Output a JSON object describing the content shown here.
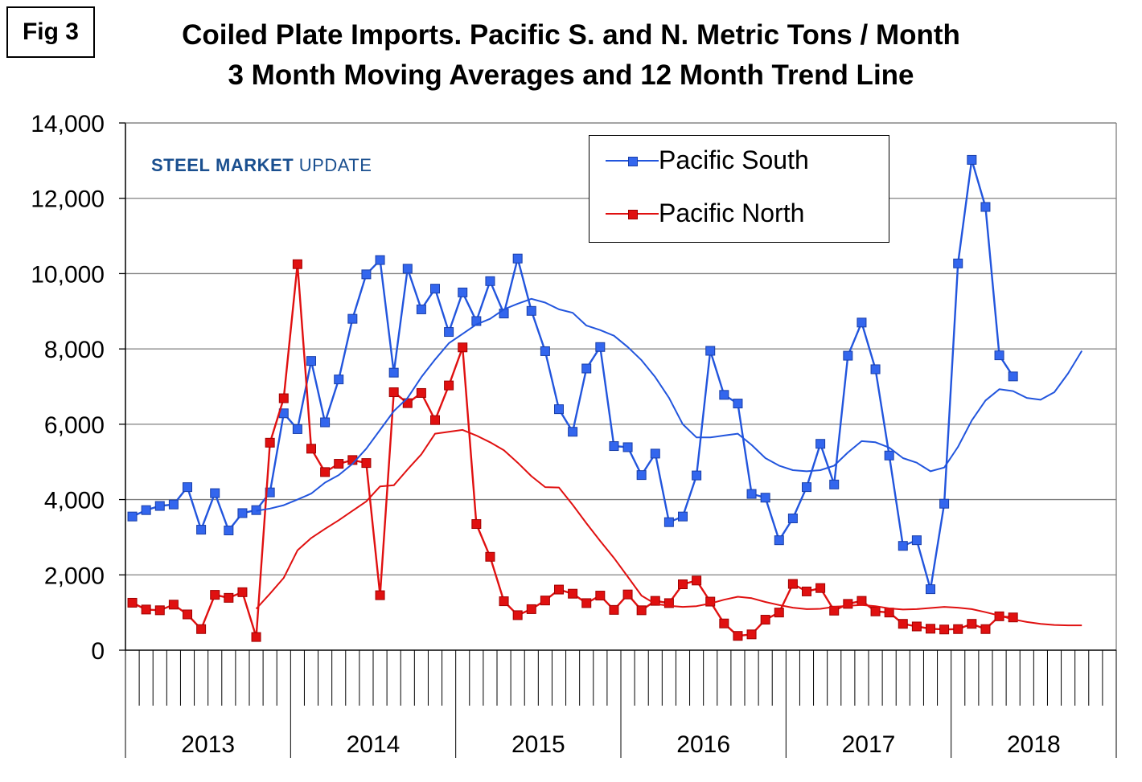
{
  "figure_label": "Fig 3",
  "title_line1": "Coiled Plate Imports. Pacific S. and N. Metric Tons / Month",
  "title_line2": "3 Month Moving Averages and 12 Month Trend Line",
  "logo": {
    "steel": "STEEL",
    "market": "MARKET",
    "update": "UPDATE"
  },
  "colors": {
    "south": "#2255dd",
    "south_marker": "#3366ee",
    "north": "#e01010",
    "grid": "#808080",
    "logo_swoosh": "#e85a1a"
  },
  "chart_data": {
    "type": "line",
    "title": "Coiled Plate Imports. Pacific S. and N. Metric Tons / Month — 3 Month Moving Averages and 12 Month Trend Line",
    "ylim": [
      0,
      14000
    ],
    "yticks": [
      "0",
      "2,000",
      "4,000",
      "6,000",
      "8,000",
      "10,000",
      "12,000",
      "14,000"
    ],
    "ytick_values": [
      0,
      2000,
      4000,
      6000,
      8000,
      10000,
      12000,
      14000
    ],
    "x_months": 72,
    "year_labels": [
      "2013",
      "2014",
      "2015",
      "2016",
      "2017",
      "2018"
    ],
    "grid": true,
    "legend_position": "top-right",
    "series": [
      {
        "name": "Pacific South",
        "style": "line-with-markers",
        "values": [
          3550,
          3720,
          3830,
          3870,
          4330,
          3200,
          4170,
          3180,
          3640,
          3720,
          4190,
          6290,
          5870,
          7680,
          6050,
          7190,
          8800,
          9980,
          10360,
          7370,
          10130,
          9050,
          9600,
          8450,
          9500,
          8740,
          9800,
          8940,
          10400,
          9010,
          7940,
          6400,
          5800,
          7480,
          8050,
          5420,
          5390,
          4650,
          5220,
          3400,
          3550,
          4640,
          7950,
          6780,
          6550,
          4150,
          4050,
          2920,
          3500,
          4330,
          5480,
          4400,
          7820,
          8700,
          7460,
          5170,
          2770,
          2920,
          1620,
          3890,
          10270,
          13020,
          11770,
          7830,
          7270
        ]
      },
      {
        "name": "Pacific North",
        "style": "line-with-markers",
        "values": [
          1260,
          1080,
          1060,
          1210,
          950,
          560,
          1470,
          1390,
          1540,
          350,
          5510,
          6690,
          10250,
          5350,
          4730,
          4950,
          5050,
          4970,
          1460,
          6850,
          6560,
          6830,
          6110,
          7030,
          8040,
          3350,
          2480,
          1300,
          930,
          1090,
          1320,
          1610,
          1500,
          1250,
          1450,
          1070,
          1480,
          1060,
          1310,
          1250,
          1750,
          1850,
          1290,
          710,
          380,
          420,
          810,
          1000,
          1760,
          1560,
          1650,
          1050,
          1230,
          1310,
          1030,
          1000,
          700,
          630,
          570,
          550,
          560,
          700,
          560,
          900,
          870
        ]
      },
      {
        "name": "Pacific South 12 Month Trend",
        "style": "line",
        "x_start": 9,
        "values": [
          3700,
          3760,
          3850,
          4000,
          4160,
          4450,
          4650,
          4950,
          5350,
          5850,
          6350,
          6700,
          7250,
          7720,
          8150,
          8400,
          8650,
          8800,
          9050,
          9200,
          9330,
          9230,
          9050,
          8960,
          8620,
          8500,
          8350,
          8050,
          7700,
          7250,
          6700,
          6000,
          5650,
          5650,
          5700,
          5750,
          5450,
          5100,
          4900,
          4780,
          4750,
          4780,
          4900,
          5250,
          5550,
          5520,
          5380,
          5100,
          4980,
          4750,
          4850,
          5400,
          6100,
          6630,
          6930,
          6880,
          6700,
          6650,
          6850,
          7350,
          7950
        ]
      },
      {
        "name": "Pacific North 12 Month Trend",
        "style": "line",
        "x_start": 9,
        "values": [
          1100,
          1500,
          1920,
          2650,
          2980,
          3220,
          3450,
          3700,
          3950,
          4350,
          4380,
          4800,
          5200,
          5750,
          5800,
          5850,
          5700,
          5520,
          5310,
          4980,
          4620,
          4330,
          4320,
          3860,
          3370,
          2900,
          2450,
          1950,
          1450,
          1230,
          1180,
          1150,
          1170,
          1240,
          1340,
          1420,
          1380,
          1280,
          1200,
          1130,
          1090,
          1100,
          1150,
          1180,
          1200,
          1170,
          1110,
          1080,
          1090,
          1120,
          1150,
          1130,
          1090,
          1010,
          920,
          820,
          750,
          700,
          670,
          660,
          660
        ]
      }
    ]
  }
}
